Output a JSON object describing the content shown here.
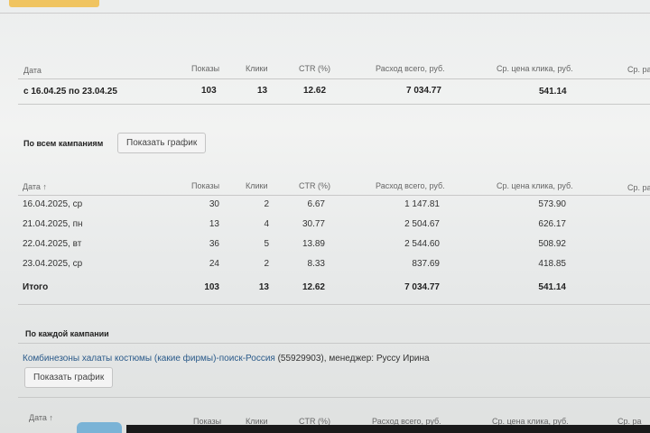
{
  "columns": {
    "date": "Дата",
    "date_sort": "Дата ↑",
    "shows": "Показы",
    "clicks": "Клики",
    "ctr": "CTR (%)",
    "cost": "Расход всего, руб.",
    "cpc": "Ср. цена клика, руб.",
    "extra": "Ср. ра"
  },
  "summary": {
    "date": "с 16.04.25 по 23.04.25",
    "shows": "103",
    "clicks": "13",
    "ctr": "12.62",
    "cost": "7 034.77",
    "cpc": "541.14"
  },
  "all_campaigns": {
    "label": "По всем кампаниям",
    "chart_button": "Показать график"
  },
  "rows": [
    {
      "date": "16.04.2025, ср",
      "shows": "30",
      "clicks": "2",
      "ctr": "6.67",
      "cost": "1 147.81",
      "cpc": "573.90"
    },
    {
      "date": "21.04.2025, пн",
      "shows": "13",
      "clicks": "4",
      "ctr": "30.77",
      "cost": "2 504.67",
      "cpc": "626.17"
    },
    {
      "date": "22.04.2025, вт",
      "shows": "36",
      "clicks": "5",
      "ctr": "13.89",
      "cost": "2 544.60",
      "cpc": "508.92"
    },
    {
      "date": "23.04.2025, ср",
      "shows": "24",
      "clicks": "2",
      "ctr": "8.33",
      "cost": "837.69",
      "cpc": "418.85"
    }
  ],
  "total": {
    "label": "Итого",
    "shows": "103",
    "clicks": "13",
    "ctr": "12.62",
    "cost": "7 034.77",
    "cpc": "541.14"
  },
  "each_campaign": {
    "label": "По каждой кампании",
    "campaign_link": "Комбинезоны халаты костюмы (какие фирмы)-поиск-Россия",
    "campaign_info": " (55929903), менеджер: Руссу Ирина",
    "chart_button": "Показать график"
  }
}
